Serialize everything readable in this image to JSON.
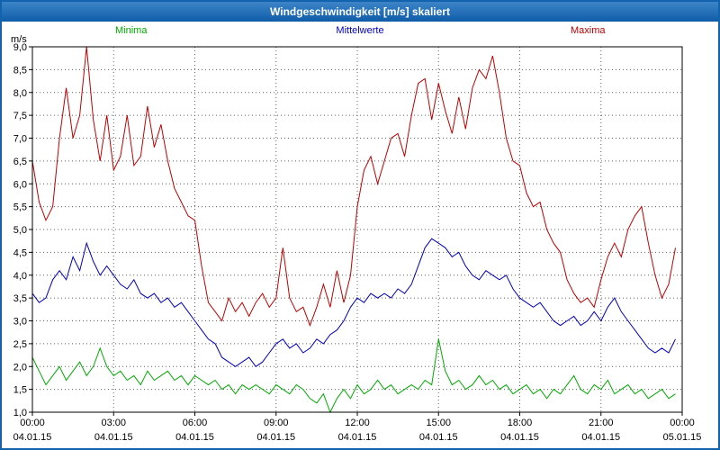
{
  "window": {
    "title": "Windgeschwindigkeit [m/s] skaliert"
  },
  "legend": {
    "minima": "Minima",
    "mittelwerte": "Mittelwerte",
    "maxima": "Maxima"
  },
  "unit_label": "m/s",
  "colors": {
    "minima": "#00AA00",
    "mittelwerte": "#0000C0",
    "maxima": "#C00000",
    "title_bar": "#1263AD",
    "grid": "#606060",
    "plot_border": "#000000"
  },
  "chart_data": {
    "type": "line",
    "title": "Windgeschwindigkeit [m/s] skaliert",
    "ylabel": "m/s",
    "ylim": [
      1.0,
      9.0
    ],
    "y_tick_step": 0.5,
    "y_tick_labels": [
      "9,0",
      "8,5",
      "8,0",
      "7,5",
      "7,0",
      "6,5",
      "6,0",
      "5,5",
      "5,0",
      "4,5",
      "4,0",
      "3,5",
      "3,0",
      "2,5",
      "2,0",
      "1,5",
      "1,0"
    ],
    "x_hours_range": [
      0,
      24
    ],
    "sample_interval_minutes": 15,
    "grid": true,
    "legend_position": "top",
    "x_ticks": [
      {
        "time": "00:00",
        "date": "04.01.15"
      },
      {
        "time": "03:00",
        "date": "04.01.15"
      },
      {
        "time": "06:00",
        "date": "04.01.15"
      },
      {
        "time": "09:00",
        "date": "04.01.15"
      },
      {
        "time": "12:00",
        "date": "04.01.15"
      },
      {
        "time": "15:00",
        "date": "04.01.15"
      },
      {
        "time": "18:00",
        "date": "04.01.15"
      },
      {
        "time": "21:00",
        "date": "04.01.15"
      },
      {
        "time": "00:00",
        "date": "05.01.15"
      }
    ],
    "series": [
      {
        "name": "Minima",
        "color": "#00AA00",
        "values": [
          2.2,
          1.9,
          1.6,
          1.8,
          2.0,
          1.7,
          1.9,
          2.1,
          1.8,
          2.0,
          2.4,
          2.0,
          1.8,
          1.9,
          1.7,
          1.8,
          1.6,
          1.9,
          1.7,
          1.8,
          1.9,
          1.7,
          1.8,
          1.6,
          1.8,
          1.7,
          1.6,
          1.7,
          1.5,
          1.6,
          1.4,
          1.6,
          1.5,
          1.6,
          1.5,
          1.4,
          1.6,
          1.5,
          1.4,
          1.6,
          1.5,
          1.3,
          1.2,
          1.4,
          1.0,
          1.3,
          1.5,
          1.3,
          1.6,
          1.4,
          1.5,
          1.7,
          1.5,
          1.6,
          1.4,
          1.5,
          1.6,
          1.5,
          1.7,
          1.6,
          2.6,
          1.9,
          1.6,
          1.7,
          1.5,
          1.6,
          1.8,
          1.6,
          1.7,
          1.5,
          1.6,
          1.4,
          1.5,
          1.6,
          1.4,
          1.5,
          1.3,
          1.5,
          1.4,
          1.6,
          1.8,
          1.5,
          1.4,
          1.6,
          1.5,
          1.7,
          1.4,
          1.5,
          1.6,
          1.4,
          1.5,
          1.3,
          1.4,
          1.5,
          1.3,
          1.4
        ]
      },
      {
        "name": "Mittelwerte",
        "color": "#0000C0",
        "values": [
          3.6,
          3.4,
          3.5,
          3.9,
          4.1,
          3.9,
          4.4,
          4.1,
          4.7,
          4.3,
          4.0,
          4.2,
          4.0,
          3.8,
          3.7,
          3.9,
          3.6,
          3.5,
          3.6,
          3.4,
          3.5,
          3.3,
          3.4,
          3.2,
          3.0,
          2.8,
          2.6,
          2.5,
          2.2,
          2.1,
          2.0,
          2.1,
          2.2,
          2.0,
          2.1,
          2.3,
          2.5,
          2.6,
          2.4,
          2.5,
          2.3,
          2.4,
          2.6,
          2.5,
          2.7,
          2.8,
          3.0,
          3.3,
          3.5,
          3.4,
          3.6,
          3.5,
          3.6,
          3.5,
          3.7,
          3.6,
          3.8,
          4.2,
          4.6,
          4.8,
          4.7,
          4.6,
          4.4,
          4.5,
          4.2,
          4.0,
          3.9,
          4.1,
          4.0,
          3.9,
          4.0,
          3.7,
          3.5,
          3.4,
          3.3,
          3.4,
          3.2,
          3.0,
          2.9,
          3.0,
          3.1,
          2.9,
          3.0,
          3.2,
          3.0,
          3.3,
          3.5,
          3.2,
          3.0,
          2.8,
          2.6,
          2.4,
          2.3,
          2.4,
          2.3,
          2.6
        ]
      },
      {
        "name": "Maxima",
        "color": "#C00000",
        "values": [
          6.5,
          5.6,
          5.2,
          5.5,
          7.0,
          8.1,
          7.0,
          7.5,
          9.0,
          7.4,
          6.5,
          7.5,
          6.3,
          6.6,
          7.5,
          6.4,
          6.6,
          7.7,
          6.8,
          7.3,
          6.5,
          5.9,
          5.6,
          5.3,
          5.2,
          4.2,
          3.4,
          3.2,
          3.0,
          3.5,
          3.2,
          3.4,
          3.1,
          3.4,
          3.6,
          3.3,
          3.5,
          4.6,
          3.5,
          3.2,
          3.3,
          2.9,
          3.3,
          3.8,
          3.3,
          4.1,
          3.4,
          4.0,
          5.5,
          6.3,
          6.6,
          6.0,
          6.5,
          7.0,
          7.1,
          6.6,
          7.5,
          8.2,
          8.3,
          7.4,
          8.2,
          7.6,
          7.1,
          7.9,
          7.2,
          8.1,
          8.5,
          8.3,
          8.8,
          8.0,
          7.0,
          6.5,
          6.4,
          5.8,
          5.5,
          5.6,
          5.0,
          4.7,
          4.5,
          3.9,
          3.6,
          3.4,
          3.5,
          3.3,
          3.9,
          4.4,
          4.7,
          4.4,
          5.0,
          5.3,
          5.5,
          4.7,
          4.0,
          3.5,
          3.8,
          4.6
        ]
      }
    ]
  }
}
